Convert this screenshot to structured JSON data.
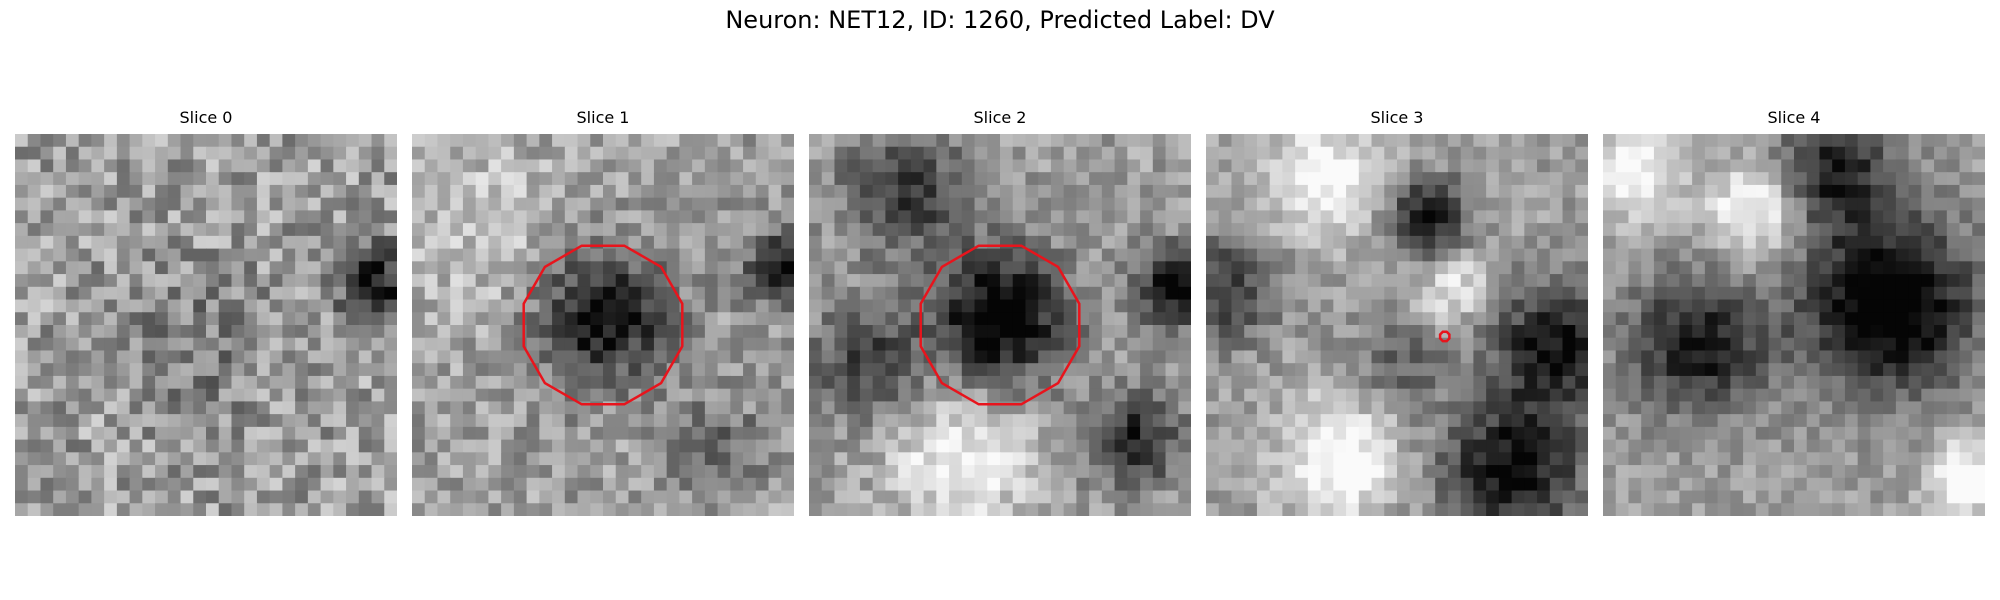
{
  "figure": {
    "title": "Neuron: NET12, ID: 1260, Predicted Label: DV"
  },
  "panels": [
    {
      "title": "Slice 0",
      "seed": 11,
      "contrast": 0.55,
      "roi": "none"
    },
    {
      "title": "Slice 1",
      "seed": 23,
      "contrast": 0.7,
      "roi": "polygon"
    },
    {
      "title": "Slice 2",
      "seed": 37,
      "contrast": 0.8,
      "roi": "polygon"
    },
    {
      "title": "Slice 3",
      "seed": 41,
      "contrast": 0.85,
      "roi": "marker"
    },
    {
      "title": "Slice 4",
      "seed": 59,
      "contrast": 0.9,
      "roi": "none"
    }
  ],
  "colors": {
    "roi_outline": "#e8141c",
    "background": "#ffffff"
  },
  "image_grid": {
    "cols": 30,
    "rows": 30,
    "colormap": "gray"
  }
}
